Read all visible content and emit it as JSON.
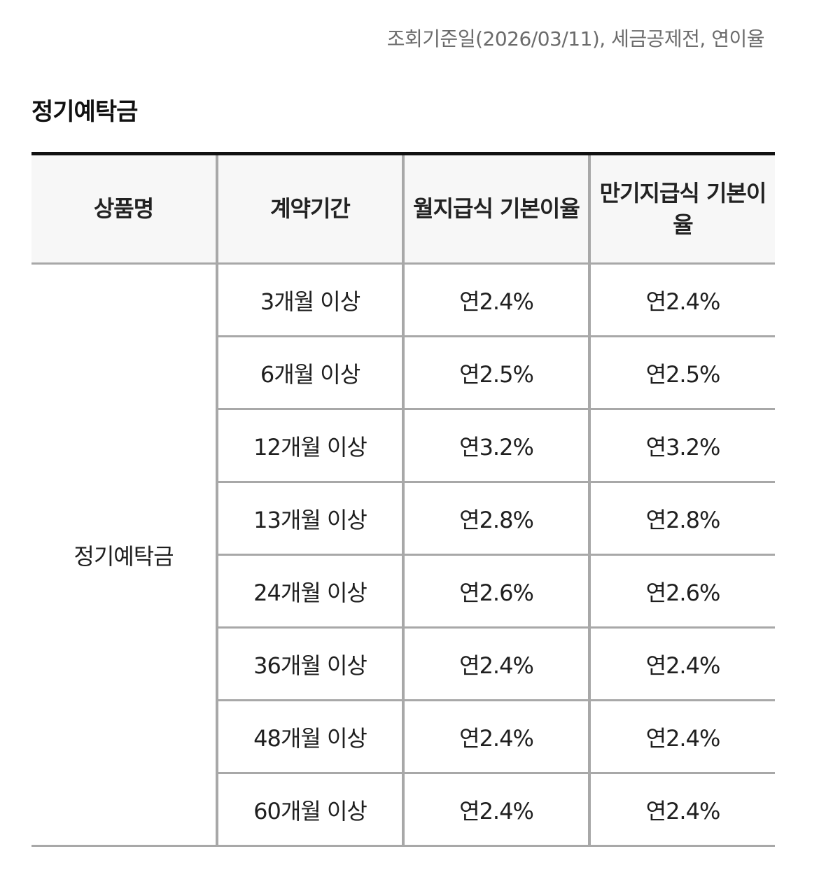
{
  "notice": "조회기준일(2026/03/11), 세금공제전, 연이율",
  "section_title": "정기예탁금",
  "table": {
    "headers": [
      "상품명",
      "계약기간",
      "월지급식 기본이율",
      "만기지급식 기본이율"
    ],
    "product_name": "정기예탁금",
    "rows": [
      {
        "period": "3개월 이상",
        "monthly": "연2.4%",
        "maturity": "연2.4%"
      },
      {
        "period": "6개월 이상",
        "monthly": "연2.5%",
        "maturity": "연2.5%"
      },
      {
        "period": "12개월 이상",
        "monthly": "연3.2%",
        "maturity": "연3.2%"
      },
      {
        "period": "13개월 이상",
        "monthly": "연2.8%",
        "maturity": "연2.8%"
      },
      {
        "period": "24개월 이상",
        "monthly": "연2.6%",
        "maturity": "연2.6%"
      },
      {
        "period": "36개월 이상",
        "monthly": "연2.4%",
        "maturity": "연2.4%"
      },
      {
        "period": "48개월 이상",
        "monthly": "연2.4%",
        "maturity": "연2.4%"
      },
      {
        "period": "60개월 이상",
        "monthly": "연2.4%",
        "maturity": "연2.4%"
      }
    ]
  }
}
